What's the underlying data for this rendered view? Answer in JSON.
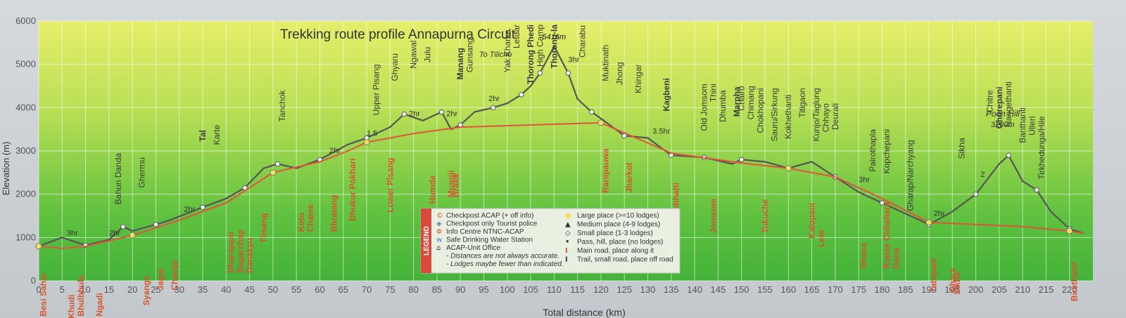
{
  "chart_data": {
    "type": "line",
    "title": "Trekking route profile Annapurna Circuit",
    "xlabel": "Total distance (km)",
    "ylabel": "Elevation (m)",
    "xlim": [
      0,
      225
    ],
    "ylim": [
      0,
      6000
    ],
    "x_ticks": [
      "0",
      "5",
      "10",
      "15",
      "20",
      "25",
      "30",
      "35",
      "40",
      "45",
      "50",
      "55",
      "60",
      "65",
      "70",
      "75",
      "80",
      "85",
      "90",
      "95",
      "100",
      "105",
      "110",
      "115",
      "120",
      "125",
      "130",
      "135",
      "140",
      "145",
      "150",
      "155",
      "160",
      "165",
      "170",
      "175",
      "180",
      "185",
      "190",
      "195",
      "200",
      "205",
      "210",
      "215",
      "220"
    ],
    "y_ticks": [
      "0",
      "1000",
      "2000",
      "3000",
      "4000",
      "5000",
      "6000"
    ],
    "grid": true,
    "series": [
      {
        "line": "trail",
        "color": "#555555",
        "points": [
          [
            0,
            800
          ],
          [
            5,
            1000
          ],
          [
            10,
            820
          ],
          [
            15,
            950
          ],
          [
            18,
            1250
          ],
          [
            20,
            1150
          ],
          [
            25,
            1300
          ],
          [
            28,
            1400
          ],
          [
            35,
            1700
          ],
          [
            40,
            1900
          ],
          [
            44,
            2150
          ],
          [
            48,
            2600
          ],
          [
            51,
            2700
          ],
          [
            55,
            2600
          ],
          [
            60,
            2800
          ],
          [
            66,
            3150
          ],
          [
            70,
            3300
          ],
          [
            75,
            3550
          ],
          [
            78,
            3850
          ],
          [
            82,
            3700
          ],
          [
            86,
            3900
          ],
          [
            88,
            3500
          ],
          [
            90,
            3600
          ],
          [
            93,
            3900
          ],
          [
            97,
            4000
          ],
          [
            100,
            4100
          ],
          [
            103,
            4300
          ],
          [
            105,
            4500
          ],
          [
            107,
            4800
          ],
          [
            110,
            5416
          ],
          [
            113,
            4800
          ],
          [
            115,
            4200
          ],
          [
            118,
            3900
          ],
          [
            120,
            3750
          ],
          [
            125,
            3350
          ],
          [
            130,
            3300
          ],
          [
            135,
            2900
          ],
          [
            138,
            2880
          ],
          [
            142,
            2850
          ],
          [
            148,
            2700
          ],
          [
            150,
            2800
          ],
          [
            155,
            2750
          ],
          [
            160,
            2600
          ],
          [
            165,
            2750
          ],
          [
            170,
            2400
          ],
          [
            175,
            2050
          ],
          [
            180,
            1800
          ],
          [
            185,
            1550
          ],
          [
            190,
            1300
          ],
          [
            195,
            1600
          ],
          [
            200,
            2000
          ],
          [
            205,
            2700
          ],
          [
            207,
            2900
          ],
          [
            210,
            2300
          ],
          [
            213,
            2100
          ],
          [
            216,
            1600
          ],
          [
            220,
            1200
          ],
          [
            223,
            1100
          ]
        ]
      },
      {
        "line": "road",
        "color": "#e0553a",
        "points": [
          [
            0,
            800
          ],
          [
            5,
            750
          ],
          [
            10,
            800
          ],
          [
            20,
            1050
          ],
          [
            30,
            1400
          ],
          [
            40,
            1800
          ],
          [
            50,
            2500
          ],
          [
            60,
            2750
          ],
          [
            66,
            3000
          ],
          [
            70,
            3200
          ],
          [
            80,
            3400
          ],
          [
            90,
            3550
          ],
          [
            120,
            3650
          ],
          [
            135,
            2950
          ],
          [
            150,
            2720
          ],
          [
            160,
            2600
          ],
          [
            170,
            2400
          ],
          [
            180,
            1900
          ],
          [
            190,
            1350
          ],
          [
            200,
            1300
          ],
          [
            210,
            1250
          ],
          [
            220,
            1150
          ],
          [
            223,
            1100
          ]
        ]
      }
    ],
    "summit": {
      "label": "5416m",
      "x": 110,
      "y": 5416
    },
    "poon_hill": {
      "label": "Poon Hill",
      "elev_label": "3200m"
    },
    "labels_gray": [
      {
        "text": "Bahun Danda",
        "x": 17
      },
      {
        "text": "Ghermu",
        "x": 22
      },
      {
        "text": "Karte",
        "x": 38
      },
      {
        "text": "Tanchok",
        "x": 52
      },
      {
        "text": "Upper Pisang",
        "x": 72
      },
      {
        "text": "Ghyaru",
        "x": 76
      },
      {
        "text": "Ngawal",
        "x": 80
      },
      {
        "text": "Julu",
        "x": 83
      },
      {
        "text": "Gunsang",
        "x": 92
      },
      {
        "text": "Yak Kharka",
        "x": 100
      },
      {
        "text": "Letdar",
        "x": 102
      },
      {
        "text": "High Camp",
        "x": 107
      },
      {
        "text": "Charabu",
        "x": 116
      },
      {
        "text": "Muktinath",
        "x": 121
      },
      {
        "text": "Jhong",
        "x": 124
      },
      {
        "text": "Khingar",
        "x": 128
      },
      {
        "text": "Old Jomsom",
        "x": 142
      },
      {
        "text": "Thini",
        "x": 144
      },
      {
        "text": "Dhumba",
        "x": 146
      },
      {
        "text": "Chairo",
        "x": 150
      },
      {
        "text": "Chimang",
        "x": 152
      },
      {
        "text": "Chokhopani",
        "x": 154
      },
      {
        "text": "Sauru/Sirkung",
        "x": 157
      },
      {
        "text": "Kokhethanti",
        "x": 160
      },
      {
        "text": "Titigaon",
        "x": 163
      },
      {
        "text": "Kunjo/Taglung",
        "x": 166
      },
      {
        "text": "Chhayo",
        "x": 168
      },
      {
        "text": "Deurali",
        "x": 170
      },
      {
        "text": "Pairothapla",
        "x": 178
      },
      {
        "text": "Kopchepani",
        "x": 181
      },
      {
        "text": "Gharap/Narchyang",
        "x": 186
      },
      {
        "text": "Sikha",
        "x": 197
      },
      {
        "text": "Chitre",
        "x": 203
      },
      {
        "text": "Nangethanti",
        "x": 207
      },
      {
        "text": "Banthanti",
        "x": 210
      },
      {
        "text": "Ulleri",
        "x": 212
      },
      {
        "text": "Tirkhedunga/Hile",
        "x": 214
      }
    ],
    "labels_bold": [
      {
        "text": "Tal",
        "x": 35
      },
      {
        "text": "Manang",
        "x": 90
      },
      {
        "text": "Thorong Phedi",
        "x": 105
      },
      {
        "text": "Thorong-la",
        "x": 110
      },
      {
        "text": "Kagbeni",
        "x": 134
      },
      {
        "text": "Marpha",
        "x": 149
      },
      {
        "text": "Ghorepani",
        "x": 205
      }
    ],
    "labels_red": [
      {
        "text": "Besi Sahar",
        "x": 1
      },
      {
        "text": "Khudi",
        "x": 7
      },
      {
        "text": "Bhulbhule",
        "x": 9
      },
      {
        "text": "Ngadi",
        "x": 13
      },
      {
        "text": "Syange",
        "x": 23
      },
      {
        "text": "Jagat",
        "x": 26
      },
      {
        "text": "Chamje",
        "x": 29
      },
      {
        "text": "Dharapani",
        "x": 41
      },
      {
        "text": "Bagarchap",
        "x": 43
      },
      {
        "text": "Danakyu",
        "x": 45
      },
      {
        "text": "Timang",
        "x": 48
      },
      {
        "text": "Koto",
        "x": 56
      },
      {
        "text": "Chame",
        "x": 58
      },
      {
        "text": "Bhratang",
        "x": 63
      },
      {
        "text": "Dhukur Pokhari",
        "x": 67
      },
      {
        "text": "Lower Pisang",
        "x": 75
      },
      {
        "text": "Humde",
        "x": 84
      },
      {
        "text": "Mungji",
        "x": 88
      },
      {
        "text": "Braka",
        "x": 89
      },
      {
        "text": "Ranipauwa",
        "x": 121
      },
      {
        "text": "Jharkot",
        "x": 126
      },
      {
        "text": "Eklobhatti",
        "x": 136
      },
      {
        "text": "Jomsom",
        "x": 144
      },
      {
        "text": "Tukuche",
        "x": 155
      },
      {
        "text": "Kalopani",
        "x": 165
      },
      {
        "text": "Lete",
        "x": 167
      },
      {
        "text": "Ghasa",
        "x": 176
      },
      {
        "text": "Rupse Chhahara",
        "x": 181
      },
      {
        "text": "Dana",
        "x": 183
      },
      {
        "text": "Tatopani",
        "x": 191
      },
      {
        "text": "Ghara",
        "x": 195
      },
      {
        "text": "Sikha",
        "x": 196
      },
      {
        "text": "Birethanti",
        "x": 221
      }
    ],
    "time_labels": [
      {
        "text": "3hr",
        "x": 6,
        "y": 1050
      },
      {
        "text": "2hr",
        "x": 15,
        "y": 1050
      },
      {
        "text": "2hr",
        "x": 31,
        "y": 1600
      },
      {
        "text": "2hr",
        "x": 62,
        "y": 2950
      },
      {
        "text": "1.5",
        "x": 70,
        "y": 3350
      },
      {
        "text": "2hr",
        "x": 79,
        "y": 3800
      },
      {
        "text": "2hr",
        "x": 87,
        "y": 3800
      },
      {
        "text": "2hr",
        "x": 96,
        "y": 4150
      },
      {
        "text": "3hr",
        "x": 113,
        "y": 5050
      },
      {
        "text": "3.5hr",
        "x": 131,
        "y": 3400
      },
      {
        "text": "3hr",
        "x": 175,
        "y": 2280
      },
      {
        "text": "2hr",
        "x": 191,
        "y": 1500
      },
      {
        "text": "2",
        "x": 201,
        "y": 2400
      }
    ],
    "annotations": [
      {
        "text": "To Tilicho",
        "x": 94
      }
    ],
    "legend": {
      "title": "LEGEND",
      "left_items": [
        {
          "symbol": "©",
          "color": "#d8542e",
          "text": "Checkpost ACAP (+ off info)"
        },
        {
          "symbol": "◈",
          "color": "#7a6fa0",
          "text": "Checkpost only Tourist police"
        },
        {
          "symbol": "Φ",
          "color": "#d8542e",
          "text": "Info Centre NTNC-ACAP"
        },
        {
          "symbol": "w",
          "color": "#4a7cc0",
          "text": "Safe Drinking Water Station"
        },
        {
          "symbol": "⌂",
          "color": "#333333",
          "text": "ACAP-Unit Office"
        },
        {
          "symbol": "",
          "color": "#333333",
          "text": "- Distances are not always accurate."
        },
        {
          "symbol": "",
          "color": "#333333",
          "text": "- Lodges maybe fewer than indicated."
        }
      ],
      "right_items": [
        {
          "symbol": "●",
          "color": "#f3e35a",
          "text": "Large place (>=10 lodges)"
        },
        {
          "symbol": "▲",
          "color": "#333333",
          "text": "Medium place (4-9 lodges)"
        },
        {
          "symbol": "◇",
          "color": "#333333",
          "text": "Small place (1-3 lodges)"
        },
        {
          "symbol": "•",
          "color": "#333333",
          "text": "Pass, hill, place (no lodges)"
        },
        {
          "symbol": "I",
          "color": "#d8542e",
          "text": "Main road, place along it"
        },
        {
          "symbol": "I",
          "color": "#333333",
          "text": "Trail, small road, place off road"
        }
      ]
    }
  }
}
